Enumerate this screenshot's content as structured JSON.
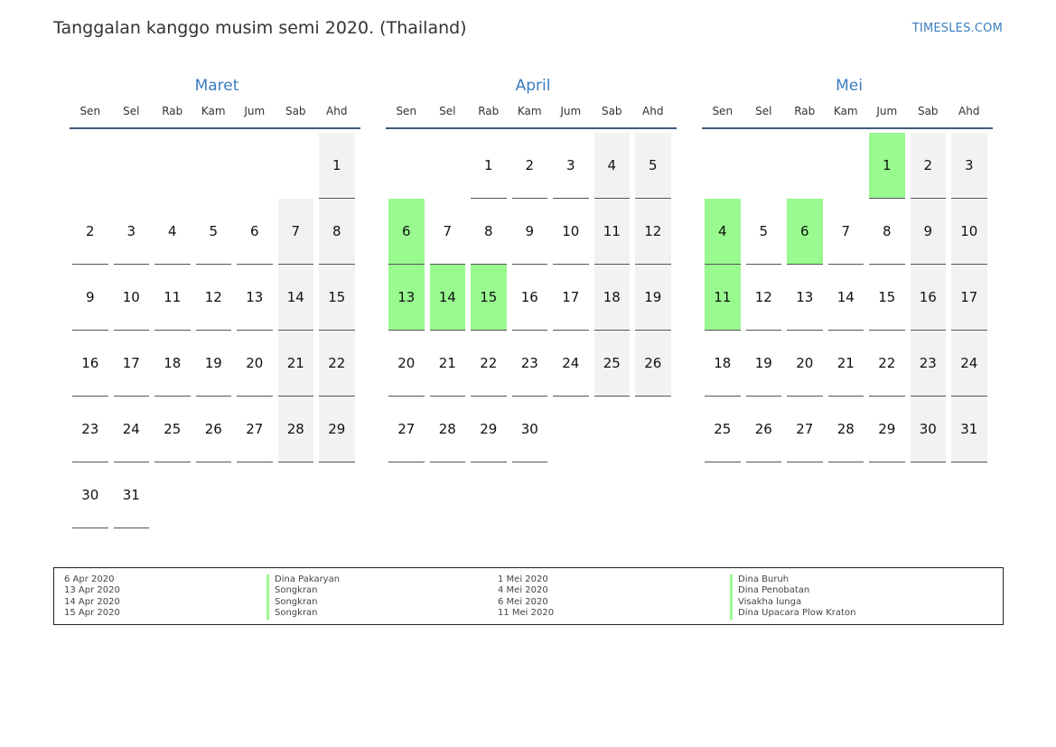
{
  "header": {
    "title": "Tanggalan kanggo musim semi 2020. (Thailand)",
    "brand": "TIMESLES.COM"
  },
  "colors": {
    "holiday": "#98fa8f",
    "weekend": "#f2f2f2",
    "accent": "#3a7dbf"
  },
  "weekdays": [
    "Sen",
    "Sel",
    "Rab",
    "Kam",
    "Jum",
    "Sab",
    "Ahd"
  ],
  "months": [
    {
      "name": "Maret",
      "start_offset": 6,
      "days": 31,
      "holidays": []
    },
    {
      "name": "April",
      "start_offset": 2,
      "days": 30,
      "holidays": [
        6,
        13,
        14,
        15
      ]
    },
    {
      "name": "Mei",
      "start_offset": 4,
      "days": 31,
      "holidays": [
        1,
        4,
        6,
        11
      ]
    }
  ],
  "legend": {
    "left": [
      {
        "date": "6 Apr 2020",
        "name": "Dina Pakaryan"
      },
      {
        "date": "13 Apr 2020",
        "name": "Songkran"
      },
      {
        "date": "14 Apr 2020",
        "name": "Songkran"
      },
      {
        "date": "15 Apr 2020",
        "name": "Songkran"
      }
    ],
    "right": [
      {
        "date": "1 Mei 2020",
        "name": "Dina Buruh"
      },
      {
        "date": "4 Mei 2020",
        "name": "Dina Penobatan"
      },
      {
        "date": "6 Mei 2020",
        "name": "Visakha lunga"
      },
      {
        "date": "11 Mei 2020",
        "name": "Dina Upacara Plow Kraton"
      }
    ]
  }
}
